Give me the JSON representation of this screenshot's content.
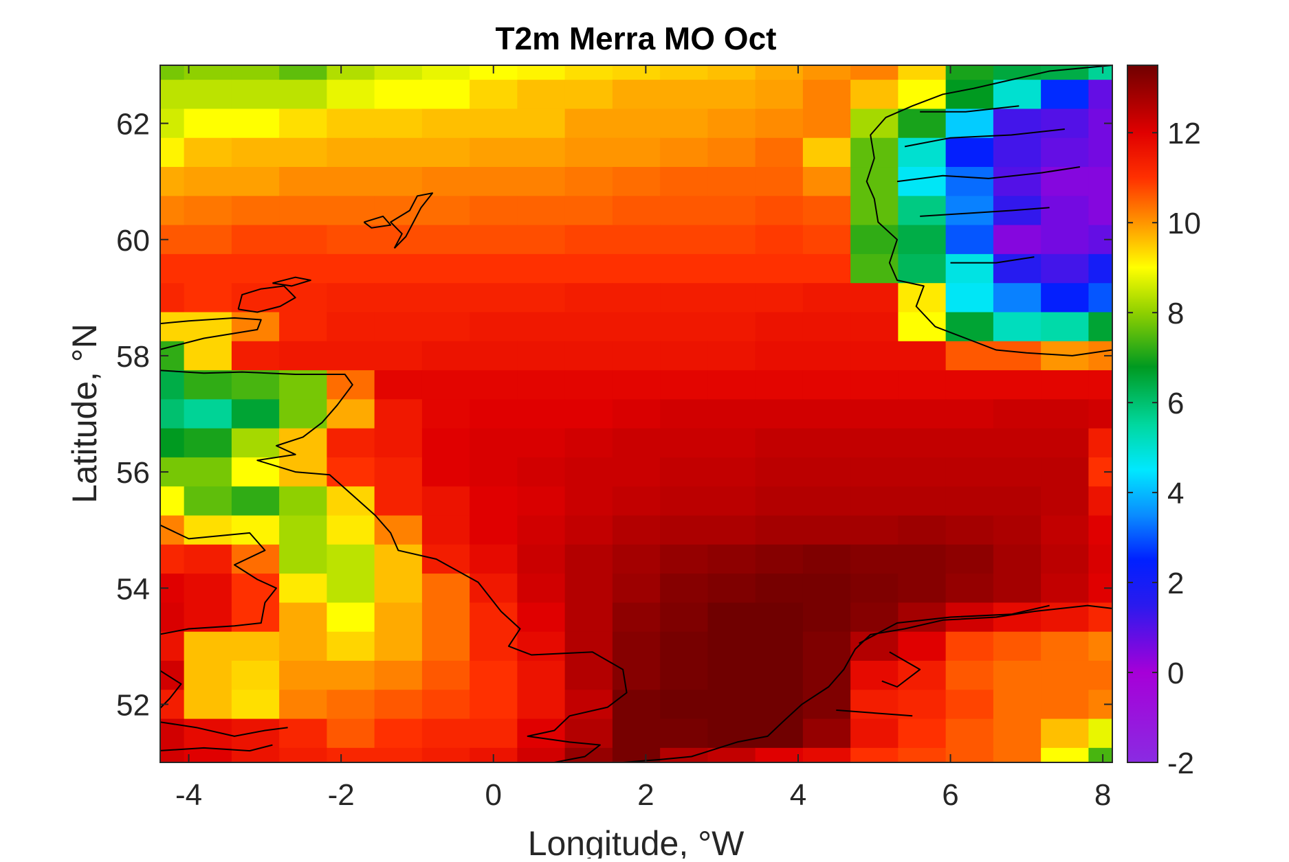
{
  "chart_data": {
    "type": "heatmap",
    "title": "T2m Merra MO Oct",
    "xlabel": "Longitude, °W",
    "ylabel": "Latitude, °N",
    "xlim": [
      -4.375,
      8.125
    ],
    "ylim": [
      51.0,
      63.0
    ],
    "x_ticks": [
      -4,
      -2,
      0,
      2,
      4,
      6,
      8
    ],
    "y_ticks": [
      52,
      54,
      56,
      58,
      60,
      62
    ],
    "x_tick_labels": [
      "-4",
      "-2",
      "0",
      "2",
      "4",
      "6",
      "8"
    ],
    "y_tick_labels": [
      "52",
      "54",
      "56",
      "58",
      "60",
      "62"
    ],
    "grid": false,
    "colorbar": {
      "position": "right",
      "clim": [
        -2,
        13.5
      ],
      "ticks": [
        -2,
        0,
        2,
        4,
        6,
        8,
        10,
        12
      ],
      "tick_labels": [
        "-2",
        "0",
        "2",
        "4",
        "6",
        "8",
        "10",
        "12"
      ],
      "colormap_stops": [
        {
          "value": -2.0,
          "color": "#8a2be2"
        },
        {
          "value": 0.0,
          "color": "#a600d8"
        },
        {
          "value": 1.5,
          "color": "#2a1aee"
        },
        {
          "value": 2.5,
          "color": "#0020ff"
        },
        {
          "value": 3.5,
          "color": "#0a8cff"
        },
        {
          "value": 4.5,
          "color": "#00e8ff"
        },
        {
          "value": 5.5,
          "color": "#00d8a0"
        },
        {
          "value": 6.8,
          "color": "#009a20"
        },
        {
          "value": 8.0,
          "color": "#8fd000"
        },
        {
          "value": 9.0,
          "color": "#ffff00"
        },
        {
          "value": 10.0,
          "color": "#ff9500"
        },
        {
          "value": 11.0,
          "color": "#ff3000"
        },
        {
          "value": 12.0,
          "color": "#e00000"
        },
        {
          "value": 13.5,
          "color": "#700000"
        }
      ]
    },
    "grid_x_centers": [
      -4.375,
      -3.75,
      -3.125,
      -2.5,
      -1.875,
      -1.25,
      -0.625,
      0.0,
      0.625,
      1.25,
      1.875,
      2.5,
      3.125,
      3.75,
      4.375,
      5.0,
      5.625,
      6.25,
      6.875,
      7.5,
      8.125
    ],
    "grid_y_centers": [
      63.0,
      62.5,
      62.0,
      61.5,
      61.0,
      60.5,
      60.0,
      59.5,
      59.0,
      58.5,
      58.0,
      57.5,
      57.0,
      56.5,
      56.0,
      55.5,
      55.0,
      54.5,
      54.0,
      53.5,
      53.0,
      52.5,
      52.0,
      51.5,
      51.0
    ],
    "values": [
      [
        7.8,
        8.0,
        8.0,
        7.6,
        8.3,
        8.6,
        8.8,
        9.0,
        9.1,
        9.3,
        9.4,
        9.5,
        9.6,
        9.8,
        10.0,
        10.2,
        9.4,
        7.0,
        6.5,
        6.4,
        5.6
      ],
      [
        8.4,
        8.4,
        8.4,
        8.4,
        8.8,
        9.0,
        9.0,
        9.4,
        9.6,
        9.6,
        9.8,
        9.8,
        9.8,
        9.9,
        10.2,
        9.6,
        9.0,
        6.8,
        5.0,
        2.6,
        0.8
      ],
      [
        8.6,
        9.0,
        9.0,
        9.3,
        9.5,
        9.5,
        9.6,
        9.6,
        9.6,
        9.9,
        9.9,
        9.9,
        10.0,
        10.1,
        10.2,
        8.2,
        7.0,
        4.2,
        1.2,
        1.0,
        0.6
      ],
      [
        9.1,
        9.6,
        9.7,
        9.7,
        9.8,
        9.8,
        9.8,
        9.9,
        9.9,
        10.0,
        10.0,
        10.1,
        10.2,
        10.4,
        9.5,
        7.6,
        5.0,
        2.4,
        1.2,
        0.8,
        0.6
      ],
      [
        9.8,
        9.9,
        9.9,
        10.1,
        10.1,
        10.1,
        10.2,
        10.2,
        10.2,
        10.3,
        10.4,
        10.5,
        10.5,
        10.5,
        10.1,
        7.6,
        4.6,
        3.2,
        1.0,
        0.4,
        0.4
      ],
      [
        10.2,
        10.3,
        10.4,
        10.4,
        10.4,
        10.4,
        10.4,
        10.5,
        10.5,
        10.5,
        10.6,
        10.6,
        10.6,
        10.7,
        10.6,
        7.6,
        5.8,
        3.4,
        1.4,
        0.6,
        0.4
      ],
      [
        10.6,
        10.6,
        10.8,
        10.8,
        10.7,
        10.7,
        10.7,
        10.7,
        10.7,
        10.8,
        10.8,
        10.8,
        10.8,
        10.9,
        10.8,
        7.2,
        6.4,
        3.0,
        0.4,
        0.6,
        0.8
      ],
      [
        11.0,
        11.0,
        11.0,
        11.0,
        11.0,
        11.0,
        11.0,
        11.0,
        11.0,
        11.0,
        11.0,
        11.0,
        11.0,
        11.0,
        11.0,
        7.4,
        6.2,
        4.8,
        1.6,
        1.2,
        2.0
      ],
      [
        11.2,
        11.0,
        11.2,
        11.2,
        11.3,
        11.3,
        11.3,
        11.3,
        11.3,
        11.4,
        11.4,
        11.4,
        11.4,
        11.4,
        11.5,
        11.5,
        9.2,
        4.6,
        3.4,
        2.4,
        3.0
      ],
      [
        9.4,
        9.4,
        10.2,
        11.2,
        11.4,
        11.4,
        11.4,
        11.5,
        11.5,
        11.5,
        11.5,
        11.5,
        11.5,
        11.6,
        11.6,
        11.6,
        9.0,
        6.6,
        5.2,
        5.4,
        6.6
      ],
      [
        7.2,
        9.4,
        11.4,
        11.5,
        11.5,
        11.5,
        11.6,
        11.6,
        11.6,
        11.6,
        11.6,
        11.6,
        11.6,
        11.7,
        11.7,
        11.7,
        11.7,
        10.6,
        10.6,
        10.0,
        10.2
      ],
      [
        6.4,
        7.2,
        7.4,
        7.8,
        10.4,
        11.9,
        11.9,
        11.9,
        11.9,
        11.9,
        11.9,
        11.9,
        11.9,
        11.9,
        11.9,
        11.9,
        11.9,
        11.9,
        11.9,
        11.9,
        11.9
      ],
      [
        6.0,
        5.6,
        6.6,
        7.8,
        9.8,
        11.5,
        11.9,
        12.0,
        12.0,
        12.0,
        12.1,
        12.2,
        12.2,
        12.2,
        12.2,
        12.2,
        12.2,
        12.2,
        12.3,
        12.3,
        12.2
      ],
      [
        6.8,
        7.0,
        8.2,
        9.6,
        11.3,
        11.5,
        12.0,
        12.1,
        12.1,
        12.2,
        12.3,
        12.3,
        12.3,
        12.4,
        12.4,
        12.4,
        12.4,
        12.4,
        12.4,
        12.4,
        11.4
      ],
      [
        7.8,
        7.8,
        9.0,
        9.6,
        11.0,
        11.3,
        12.0,
        12.1,
        12.2,
        12.3,
        12.3,
        12.4,
        12.4,
        12.5,
        12.5,
        12.5,
        12.5,
        12.5,
        12.5,
        12.5,
        11.0
      ],
      [
        9.0,
        7.6,
        7.2,
        8.0,
        9.4,
        11.3,
        11.6,
        12.0,
        12.1,
        12.3,
        12.4,
        12.5,
        12.5,
        12.6,
        12.6,
        12.6,
        12.6,
        12.6,
        12.6,
        12.5,
        11.6
      ],
      [
        10.2,
        9.3,
        9.1,
        8.2,
        9.2,
        10.2,
        11.6,
        12.0,
        12.2,
        12.4,
        12.6,
        12.7,
        12.7,
        12.8,
        12.8,
        12.8,
        12.9,
        12.8,
        12.7,
        12.4,
        12.0
      ],
      [
        11.2,
        11.4,
        10.4,
        8.2,
        8.4,
        9.6,
        11.4,
        11.8,
        12.3,
        12.6,
        12.8,
        13.0,
        13.1,
        13.2,
        13.3,
        13.2,
        13.2,
        13.1,
        12.8,
        12.5,
        12.1
      ],
      [
        12.0,
        11.8,
        11.0,
        9.2,
        8.4,
        9.6,
        10.4,
        11.5,
        12.2,
        12.6,
        12.9,
        13.2,
        13.3,
        13.4,
        13.4,
        13.3,
        13.2,
        13.0,
        12.8,
        12.4,
        12.0
      ],
      [
        12.1,
        11.8,
        11.0,
        9.8,
        9.0,
        9.8,
        10.4,
        11.2,
        12.0,
        12.6,
        13.1,
        13.3,
        13.5,
        13.5,
        13.4,
        13.2,
        12.8,
        12.2,
        11.8,
        11.6,
        11.2
      ],
      [
        11.6,
        9.6,
        9.6,
        9.8,
        9.4,
        9.8,
        10.4,
        11.2,
        11.8,
        12.6,
        13.2,
        13.4,
        13.5,
        13.5,
        13.3,
        12.6,
        12.0,
        10.8,
        10.6,
        10.4,
        10.2
      ],
      [
        12.2,
        9.6,
        9.4,
        10.0,
        10.0,
        10.2,
        10.6,
        11.0,
        11.6,
        12.6,
        13.2,
        13.4,
        13.5,
        13.5,
        13.3,
        11.8,
        11.4,
        10.6,
        10.4,
        10.4,
        10.4
      ],
      [
        11.4,
        9.6,
        9.3,
        10.2,
        10.4,
        10.6,
        10.8,
        11.0,
        11.6,
        12.4,
        13.4,
        13.5,
        13.5,
        13.5,
        13.3,
        11.4,
        11.2,
        10.8,
        10.4,
        10.4,
        10.2
      ],
      [
        12.2,
        11.8,
        11.6,
        11.2,
        10.6,
        11.0,
        11.2,
        11.2,
        12.0,
        12.6,
        13.4,
        13.4,
        13.5,
        13.5,
        13.0,
        11.6,
        11.0,
        10.6,
        10.4,
        9.6,
        8.8
      ],
      [
        12.2,
        12.0,
        11.6,
        11.4,
        11.2,
        11.2,
        11.4,
        11.6,
        12.2,
        13.0,
        13.4,
        12.6,
        12.4,
        12.0,
        11.8,
        11.0,
        10.8,
        10.6,
        10.4,
        9.0,
        7.4
      ]
    ]
  }
}
